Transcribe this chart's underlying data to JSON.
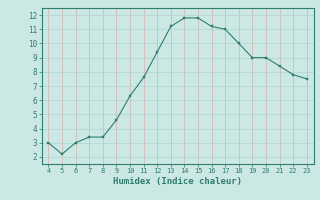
{
  "x": [
    4,
    5,
    6,
    7,
    8,
    9,
    10,
    11,
    12,
    13,
    14,
    15,
    16,
    17,
    18,
    19,
    20,
    21,
    22,
    23
  ],
  "y": [
    3.0,
    2.2,
    3.0,
    3.4,
    3.4,
    4.6,
    6.3,
    7.6,
    9.4,
    11.2,
    11.8,
    11.8,
    11.2,
    11.0,
    10.0,
    9.0,
    9.0,
    8.4,
    7.8,
    7.5
  ],
  "xlabel": "Humidex (Indice chaleur)",
  "xlim": [
    3.5,
    23.5
  ],
  "ylim": [
    1.5,
    12.5
  ],
  "xticks": [
    4,
    5,
    6,
    7,
    8,
    9,
    10,
    11,
    12,
    13,
    14,
    15,
    16,
    17,
    18,
    19,
    20,
    21,
    22,
    23
  ],
  "yticks": [
    2,
    3,
    4,
    5,
    6,
    7,
    8,
    9,
    10,
    11,
    12
  ],
  "line_color": "#2e7d6e",
  "marker_color": "#2e7d6e",
  "bg_color": "#cce8e4",
  "face_color": "#cce8e4",
  "grid_color": "#b0d4ce",
  "grid_color_red": "#d4b0b0",
  "spine_color": "#2e7d6e"
}
